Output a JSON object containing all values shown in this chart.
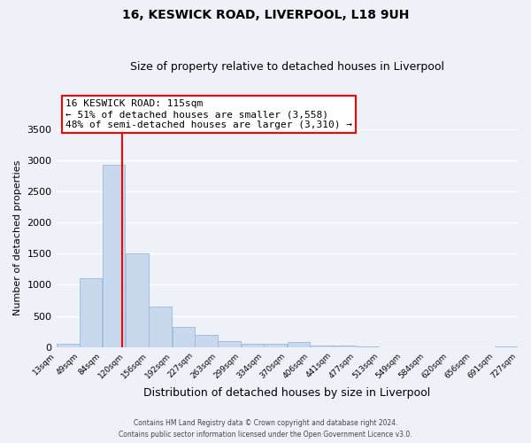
{
  "title": "16, KESWICK ROAD, LIVERPOOL, L18 9UH",
  "subtitle": "Size of property relative to detached houses in Liverpool",
  "xlabel": "Distribution of detached houses by size in Liverpool",
  "ylabel": "Number of detached properties",
  "bar_color": "#c8d9ee",
  "bar_edge_color": "#9db8d8",
  "background_color": "#eef2f8",
  "grid_color": "#ffffff",
  "red_line_x": 115,
  "annotation_title": "16 KESWICK ROAD: 115sqm",
  "annotation_line1": "← 51% of detached houses are smaller (3,558)",
  "annotation_line2": "48% of semi-detached houses are larger (3,310) →",
  "bin_edges": [
    13,
    49,
    84,
    120,
    156,
    192,
    227,
    263,
    299,
    334,
    370,
    406,
    441,
    477,
    513,
    549,
    584,
    620,
    656,
    691,
    727
  ],
  "bar_heights": [
    50,
    1100,
    2920,
    1510,
    650,
    330,
    200,
    100,
    50,
    50,
    80,
    20,
    20,
    5,
    0,
    0,
    0,
    0,
    0,
    5
  ],
  "ylim": [
    0,
    3500
  ],
  "yticks": [
    0,
    500,
    1000,
    1500,
    2000,
    2500,
    3000,
    3500
  ],
  "footer_line1": "Contains HM Land Registry data © Crown copyright and database right 2024.",
  "footer_line2": "Contains public sector information licensed under the Open Government Licence v3.0."
}
